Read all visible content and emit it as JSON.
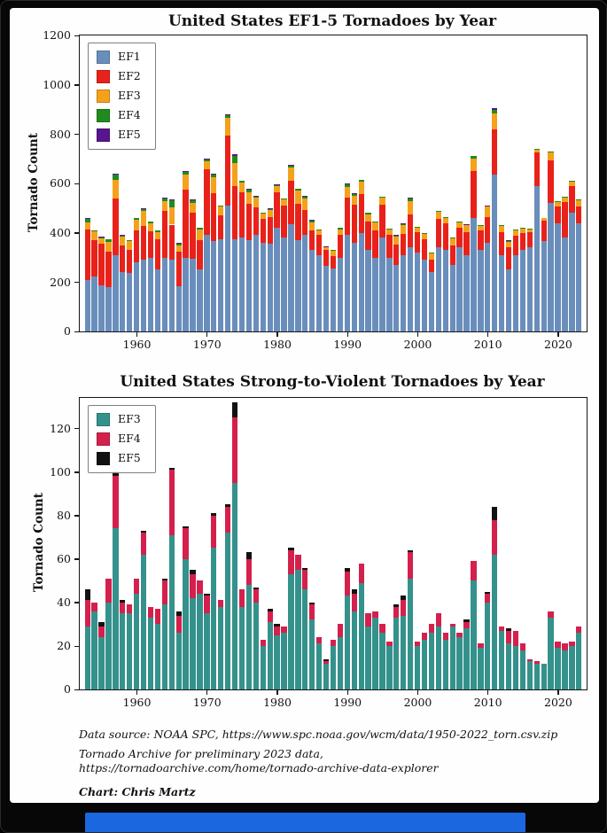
{
  "frame": {
    "outer_bg": "#070707",
    "panel_bg": "#fefefe",
    "bottom_bar_color": "#1b67df"
  },
  "footer": {
    "line1": "Data source: NOAA SPC, https://www.spc.noaa.gov/wcm/data/1950-2022_torn.csv.zip",
    "line2": "Tornado Archive for preliminary 2023 data,",
    "line3": "https://tornadoarchive.com/home/tornado-archive-data-explorer",
    "credit": "Chart: Chris Martz"
  },
  "chart_data": [
    {
      "type": "bar",
      "stacked": true,
      "title": "United States EF1-5 Tornadoes by Year",
      "xlabel": "",
      "ylabel": "Tornado Count",
      "ylim": [
        0,
        1200
      ],
      "yticks": [
        0,
        200,
        400,
        600,
        800,
        1000,
        1200
      ],
      "xticks": [
        1960,
        1970,
        1980,
        1990,
        2000,
        2010,
        2020
      ],
      "grid": false,
      "legend_position": "upper left",
      "years": [
        1953,
        1954,
        1955,
        1956,
        1957,
        1958,
        1959,
        1960,
        1961,
        1962,
        1963,
        1964,
        1965,
        1966,
        1967,
        1968,
        1969,
        1970,
        1971,
        1972,
        1973,
        1974,
        1975,
        1976,
        1977,
        1978,
        1979,
        1980,
        1981,
        1982,
        1983,
        1984,
        1985,
        1986,
        1987,
        1988,
        1989,
        1990,
        1991,
        1992,
        1993,
        1994,
        1995,
        1996,
        1997,
        1998,
        1999,
        2000,
        2001,
        2002,
        2003,
        2004,
        2005,
        2006,
        2007,
        2008,
        2009,
        2010,
        2011,
        2012,
        2013,
        2014,
        2015,
        2016,
        2017,
        2018,
        2019,
        2020,
        2021,
        2022,
        2023
      ],
      "series": [
        {
          "name": "EF1",
          "color": "#6a8ebc",
          "values": [
            210,
            222,
            188,
            178,
            310,
            242,
            238,
            282,
            290,
            300,
            252,
            300,
            290,
            185,
            300,
            295,
            250,
            390,
            365,
            375,
            510,
            375,
            380,
            370,
            390,
            360,
            355,
            420,
            380,
            435,
            370,
            390,
            330,
            310,
            265,
            255,
            300,
            390,
            360,
            400,
            330,
            300,
            380,
            300,
            270,
            310,
            340,
            320,
            290,
            240,
            340,
            330,
            270,
            340,
            310,
            460,
            330,
            360,
            635,
            310,
            250,
            310,
            330,
            340,
            590,
            365,
            520,
            440,
            380,
            480,
            440
          ]
        },
        {
          "name": "EF2",
          "color": "#e8221a",
          "values": [
            204,
            148,
            166,
            146,
            230,
            107,
            93,
            127,
            137,
            107,
            121,
            189,
            143,
            139,
            275,
            185,
            120,
            266,
            194,
            94,
            285,
            213,
            184,
            147,
            113,
            97,
            108,
            145,
            131,
            175,
            148,
            102,
            80,
            81,
            66,
            52,
            90,
            154,
            154,
            157,
            115,
            109,
            135,
            93,
            81,
            87,
            136,
            83,
            84,
            50,
            115,
            109,
            80,
            79,
            93,
            191,
            79,
            105,
            186,
            91,
            92,
            78,
            69,
            61,
            137,
            83,
            174,
            68,
            144,
            108,
            66
          ]
        },
        {
          "name": "EF3",
          "color": "#f5a11c",
          "values": [
            29,
            36,
            24,
            40,
            74,
            35,
            35,
            44,
            62,
            33,
            30,
            39,
            71,
            26,
            60,
            42,
            44,
            35,
            65,
            38,
            72,
            95,
            38,
            48,
            40,
            20,
            31,
            25,
            26,
            53,
            55,
            46,
            32,
            21,
            12,
            20,
            24,
            43,
            36,
            49,
            29,
            33,
            26,
            20,
            33,
            34,
            51,
            20,
            23,
            26,
            29,
            23,
            29,
            24,
            28,
            50,
            19,
            40,
            62,
            27,
            21,
            20,
            18,
            13,
            12,
            12,
            33,
            19,
            18,
            20,
            26
          ]
        },
        {
          "name": "EF4",
          "color": "#1f8b1f",
          "values": [
            12,
            4,
            5,
            11,
            24,
            5,
            4,
            7,
            10,
            5,
            7,
            11,
            30,
            8,
            14,
            11,
            6,
            8,
            15,
            3,
            12,
            30,
            8,
            12,
            6,
            3,
            5,
            4,
            3,
            11,
            7,
            9,
            7,
            3,
            1,
            3,
            6,
            11,
            8,
            9,
            6,
            3,
            4,
            2,
            5,
            7,
            12,
            2,
            3,
            4,
            6,
            3,
            1,
            2,
            3,
            9,
            2,
            4,
            16,
            2,
            6,
            7,
            3,
            1,
            1,
            0,
            3,
            3,
            3,
            2,
            3
          ]
        },
        {
          "name": "EF5",
          "color": "#58158d",
          "values": [
            5,
            0,
            2,
            0,
            2,
            1,
            0,
            0,
            1,
            0,
            0,
            1,
            1,
            2,
            1,
            2,
            0,
            1,
            1,
            0,
            1,
            7,
            0,
            3,
            1,
            0,
            1,
            1,
            0,
            1,
            0,
            1,
            1,
            0,
            1,
            0,
            0,
            2,
            2,
            0,
            0,
            0,
            0,
            0,
            1,
            2,
            1,
            0,
            0,
            0,
            0,
            0,
            0,
            0,
            1,
            0,
            0,
            1,
            6,
            0,
            1,
            0,
            0,
            0,
            0,
            0,
            0,
            0,
            0,
            0,
            0
          ]
        }
      ]
    },
    {
      "type": "bar",
      "stacked": true,
      "title": "United States Strong-to-Violent Tornadoes by Year",
      "xlabel": "",
      "ylabel": "Tornado Count",
      "ylim": [
        0,
        134
      ],
      "yticks": [
        0,
        20,
        40,
        60,
        80,
        100,
        120
      ],
      "xticks": [
        1960,
        1970,
        1980,
        1990,
        2000,
        2010,
        2020
      ],
      "grid": false,
      "legend_position": "upper left",
      "years": [
        1953,
        1954,
        1955,
        1956,
        1957,
        1958,
        1959,
        1960,
        1961,
        1962,
        1963,
        1964,
        1965,
        1966,
        1967,
        1968,
        1969,
        1970,
        1971,
        1972,
        1973,
        1974,
        1975,
        1976,
        1977,
        1978,
        1979,
        1980,
        1981,
        1982,
        1983,
        1984,
        1985,
        1986,
        1987,
        1988,
        1989,
        1990,
        1991,
        1992,
        1993,
        1994,
        1995,
        1996,
        1997,
        1998,
        1999,
        2000,
        2001,
        2002,
        2003,
        2004,
        2005,
        2006,
        2007,
        2008,
        2009,
        2010,
        2011,
        2012,
        2013,
        2014,
        2015,
        2016,
        2017,
        2018,
        2019,
        2020,
        2021,
        2022,
        2023
      ],
      "series": [
        {
          "name": "EF3",
          "color": "#35918b",
          "values": [
            29,
            36,
            24,
            40,
            74,
            35,
            35,
            44,
            62,
            33,
            30,
            39,
            71,
            26,
            60,
            42,
            44,
            35,
            65,
            38,
            72,
            95,
            38,
            48,
            40,
            20,
            31,
            25,
            26,
            53,
            55,
            46,
            32,
            21,
            12,
            20,
            24,
            43,
            36,
            49,
            29,
            33,
            26,
            20,
            33,
            34,
            51,
            20,
            23,
            26,
            29,
            23,
            29,
            24,
            28,
            50,
            19,
            40,
            62,
            27,
            21,
            20,
            18,
            13,
            12,
            12,
            33,
            19,
            18,
            20,
            26
          ]
        },
        {
          "name": "EF4",
          "color": "#d4204c",
          "values": [
            12,
            4,
            5,
            11,
            24,
            5,
            4,
            7,
            10,
            5,
            7,
            11,
            30,
            8,
            14,
            11,
            6,
            8,
            15,
            3,
            12,
            30,
            8,
            12,
            6,
            3,
            5,
            4,
            3,
            11,
            7,
            9,
            7,
            3,
            1,
            3,
            6,
            11,
            8,
            9,
            6,
            3,
            4,
            2,
            5,
            7,
            12,
            2,
            3,
            4,
            6,
            3,
            1,
            2,
            3,
            9,
            2,
            4,
            16,
            2,
            6,
            7,
            3,
            1,
            1,
            0,
            3,
            3,
            3,
            2,
            3
          ]
        },
        {
          "name": "EF5",
          "color": "#121212",
          "values": [
            5,
            0,
            2,
            0,
            2,
            1,
            0,
            0,
            1,
            0,
            0,
            1,
            1,
            2,
            1,
            2,
            0,
            1,
            1,
            0,
            1,
            7,
            0,
            3,
            1,
            0,
            1,
            1,
            0,
            1,
            0,
            1,
            1,
            0,
            1,
            0,
            0,
            2,
            2,
            0,
            0,
            0,
            0,
            0,
            1,
            2,
            1,
            0,
            0,
            0,
            0,
            0,
            0,
            0,
            1,
            0,
            0,
            1,
            6,
            0,
            1,
            0,
            0,
            0,
            0,
            0,
            0,
            0,
            0,
            0,
            0
          ]
        }
      ]
    }
  ]
}
